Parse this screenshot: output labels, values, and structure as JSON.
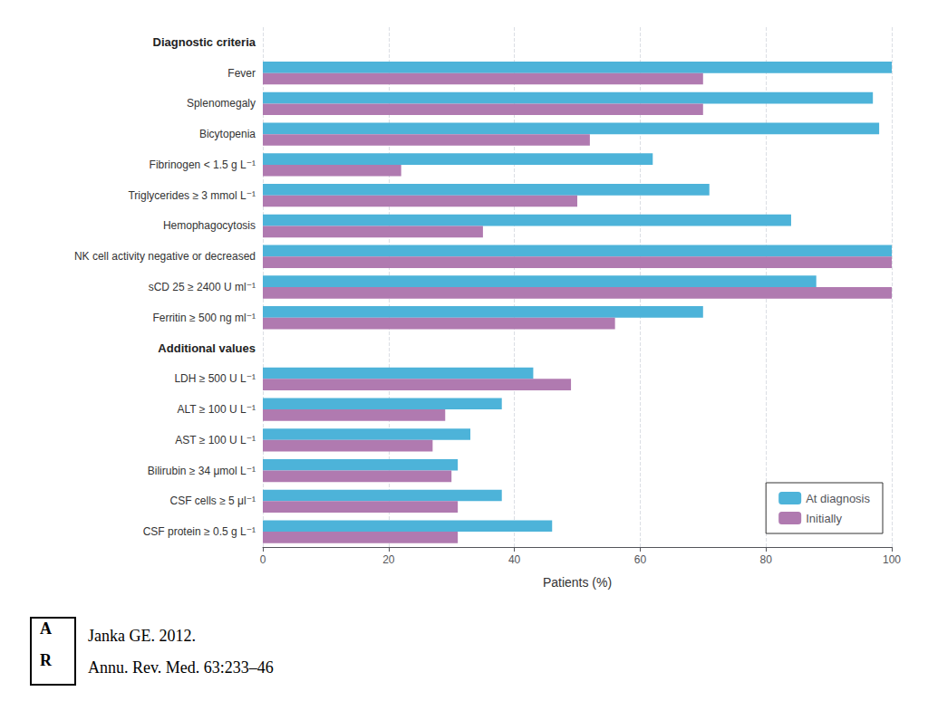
{
  "chart_data": {
    "type": "bar",
    "orientation": "horizontal",
    "categories": [
      "Diagnostic criteria",
      "Fever",
      "Splenomegaly",
      "Bicytopenia",
      "Fibrinogen < 1.5 g L⁻¹",
      "Triglycerides ≥ 3 mmol L⁻¹",
      "Hemophagocytosis",
      "NK cell activity negative or decreased",
      "sCD 25 ≥ 2400 U ml⁻¹",
      "Ferritin ≥ 500 ng ml⁻¹",
      "Additional values",
      "LDH ≥ 500 U L⁻¹",
      "ALT ≥ 100 U L⁻¹",
      "AST ≥ 100 U L⁻¹",
      "Bilirubin ≥ 34 μmol L⁻¹",
      "CSF cells ≥ 5 μl⁻¹",
      "CSF protein ≥ 0.5 g L⁻¹"
    ],
    "series": [
      {
        "name": "At diagnosis",
        "color": "#4db3d9",
        "values": [
          null,
          100,
          97,
          98,
          62,
          71,
          84,
          100,
          88,
          70,
          null,
          43,
          38,
          33,
          31,
          38,
          46
        ]
      },
      {
        "name": "Initially",
        "color": "#b07ab0",
        "values": [
          null,
          70,
          70,
          52,
          22,
          50,
          35,
          100,
          100,
          56,
          null,
          49,
          29,
          27,
          30,
          31,
          31
        ]
      }
    ],
    "xlabel": "Patients (%)",
    "xlim": [
      0,
      100
    ],
    "xticks": [
      0,
      20,
      40,
      60,
      80,
      100
    ],
    "grid": true,
    "legend": "lower right",
    "annotations": [
      "A",
      "R",
      "Janka GE. 2012.",
      "Annu. Rev. Med. 63:233–46"
    ]
  }
}
